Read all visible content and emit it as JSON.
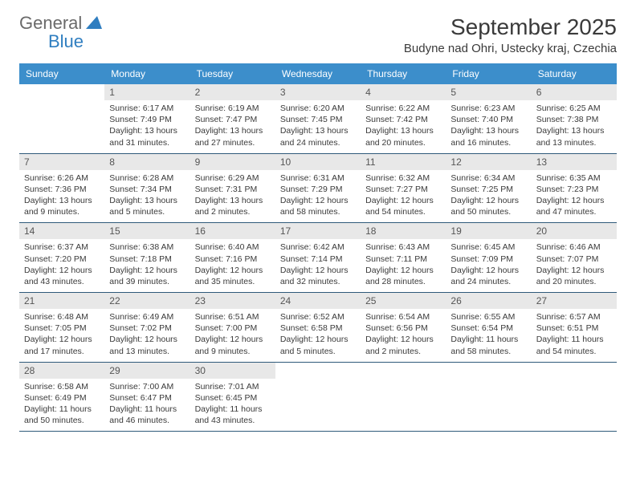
{
  "brand": {
    "part1": "General",
    "part2": "Blue"
  },
  "title": "September 2025",
  "location": "Budyne nad Ohri, Ustecky kraj, Czechia",
  "colors": {
    "header_bg": "#3c8ecb",
    "header_text": "#ffffff",
    "daynum_bg": "#e8e8e8",
    "row_border": "#2f5a7a",
    "brand_gray": "#6a6a6a",
    "brand_blue": "#2f7ec0"
  },
  "weekdays": [
    "Sunday",
    "Monday",
    "Tuesday",
    "Wednesday",
    "Thursday",
    "Friday",
    "Saturday"
  ],
  "weeks": [
    [
      null,
      {
        "n": "1",
        "sr": "6:17 AM",
        "ss": "7:49 PM",
        "dl": "13 hours and 31 minutes."
      },
      {
        "n": "2",
        "sr": "6:19 AM",
        "ss": "7:47 PM",
        "dl": "13 hours and 27 minutes."
      },
      {
        "n": "3",
        "sr": "6:20 AM",
        "ss": "7:45 PM",
        "dl": "13 hours and 24 minutes."
      },
      {
        "n": "4",
        "sr": "6:22 AM",
        "ss": "7:42 PM",
        "dl": "13 hours and 20 minutes."
      },
      {
        "n": "5",
        "sr": "6:23 AM",
        "ss": "7:40 PM",
        "dl": "13 hours and 16 minutes."
      },
      {
        "n": "6",
        "sr": "6:25 AM",
        "ss": "7:38 PM",
        "dl": "13 hours and 13 minutes."
      }
    ],
    [
      {
        "n": "7",
        "sr": "6:26 AM",
        "ss": "7:36 PM",
        "dl": "13 hours and 9 minutes."
      },
      {
        "n": "8",
        "sr": "6:28 AM",
        "ss": "7:34 PM",
        "dl": "13 hours and 5 minutes."
      },
      {
        "n": "9",
        "sr": "6:29 AM",
        "ss": "7:31 PM",
        "dl": "13 hours and 2 minutes."
      },
      {
        "n": "10",
        "sr": "6:31 AM",
        "ss": "7:29 PM",
        "dl": "12 hours and 58 minutes."
      },
      {
        "n": "11",
        "sr": "6:32 AM",
        "ss": "7:27 PM",
        "dl": "12 hours and 54 minutes."
      },
      {
        "n": "12",
        "sr": "6:34 AM",
        "ss": "7:25 PM",
        "dl": "12 hours and 50 minutes."
      },
      {
        "n": "13",
        "sr": "6:35 AM",
        "ss": "7:23 PM",
        "dl": "12 hours and 47 minutes."
      }
    ],
    [
      {
        "n": "14",
        "sr": "6:37 AM",
        "ss": "7:20 PM",
        "dl": "12 hours and 43 minutes."
      },
      {
        "n": "15",
        "sr": "6:38 AM",
        "ss": "7:18 PM",
        "dl": "12 hours and 39 minutes."
      },
      {
        "n": "16",
        "sr": "6:40 AM",
        "ss": "7:16 PM",
        "dl": "12 hours and 35 minutes."
      },
      {
        "n": "17",
        "sr": "6:42 AM",
        "ss": "7:14 PM",
        "dl": "12 hours and 32 minutes."
      },
      {
        "n": "18",
        "sr": "6:43 AM",
        "ss": "7:11 PM",
        "dl": "12 hours and 28 minutes."
      },
      {
        "n": "19",
        "sr": "6:45 AM",
        "ss": "7:09 PM",
        "dl": "12 hours and 24 minutes."
      },
      {
        "n": "20",
        "sr": "6:46 AM",
        "ss": "7:07 PM",
        "dl": "12 hours and 20 minutes."
      }
    ],
    [
      {
        "n": "21",
        "sr": "6:48 AM",
        "ss": "7:05 PM",
        "dl": "12 hours and 17 minutes."
      },
      {
        "n": "22",
        "sr": "6:49 AM",
        "ss": "7:02 PM",
        "dl": "12 hours and 13 minutes."
      },
      {
        "n": "23",
        "sr": "6:51 AM",
        "ss": "7:00 PM",
        "dl": "12 hours and 9 minutes."
      },
      {
        "n": "24",
        "sr": "6:52 AM",
        "ss": "6:58 PM",
        "dl": "12 hours and 5 minutes."
      },
      {
        "n": "25",
        "sr": "6:54 AM",
        "ss": "6:56 PM",
        "dl": "12 hours and 2 minutes."
      },
      {
        "n": "26",
        "sr": "6:55 AM",
        "ss": "6:54 PM",
        "dl": "11 hours and 58 minutes."
      },
      {
        "n": "27",
        "sr": "6:57 AM",
        "ss": "6:51 PM",
        "dl": "11 hours and 54 minutes."
      }
    ],
    [
      {
        "n": "28",
        "sr": "6:58 AM",
        "ss": "6:49 PM",
        "dl": "11 hours and 50 minutes."
      },
      {
        "n": "29",
        "sr": "7:00 AM",
        "ss": "6:47 PM",
        "dl": "11 hours and 46 minutes."
      },
      {
        "n": "30",
        "sr": "7:01 AM",
        "ss": "6:45 PM",
        "dl": "11 hours and 43 minutes."
      },
      null,
      null,
      null,
      null
    ]
  ],
  "labels": {
    "sunrise": "Sunrise:",
    "sunset": "Sunset:",
    "daylight": "Daylight:"
  }
}
